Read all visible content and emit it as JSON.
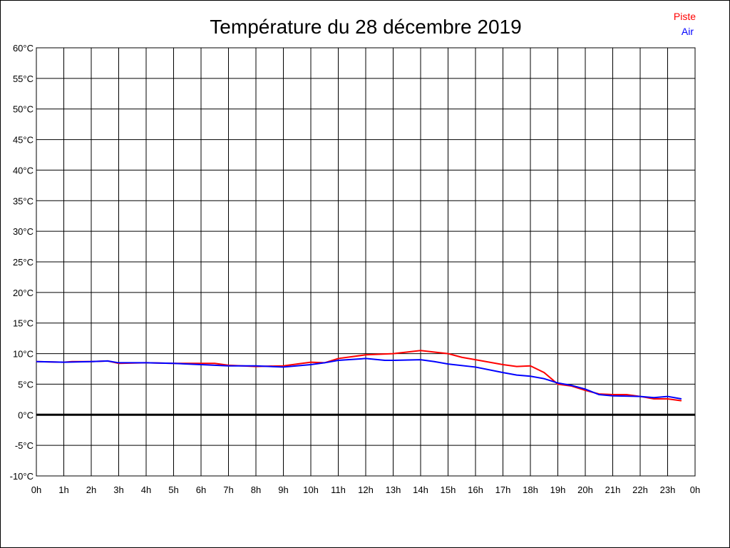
{
  "chart_data": {
    "type": "line",
    "title": "Température du 28 décembre 2019",
    "xlabel": "",
    "ylabel": "",
    "ylim": [
      -10,
      60
    ],
    "xlim": [
      0,
      24
    ],
    "grid": true,
    "legend_placement": "top-right",
    "y_ticks": [
      {
        "v": 60,
        "label": "60°C"
      },
      {
        "v": 55,
        "label": "55°C"
      },
      {
        "v": 50,
        "label": "50°C"
      },
      {
        "v": 45,
        "label": "45°C"
      },
      {
        "v": 40,
        "label": "40°C"
      },
      {
        "v": 35,
        "label": "35°C"
      },
      {
        "v": 30,
        "label": "30°C"
      },
      {
        "v": 25,
        "label": "25°C"
      },
      {
        "v": 20,
        "label": "20°C"
      },
      {
        "v": 15,
        "label": "15°C"
      },
      {
        "v": 10,
        "label": "10°C"
      },
      {
        "v": 5,
        "label": "5°C"
      },
      {
        "v": 0,
        "label": "0°C"
      },
      {
        "v": -5,
        "label": "-5°C"
      },
      {
        "v": -10,
        "label": "-10°C"
      }
    ],
    "x_ticks": [
      {
        "v": 0,
        "label": "0h"
      },
      {
        "v": 1,
        "label": "1h"
      },
      {
        "v": 2,
        "label": "2h"
      },
      {
        "v": 3,
        "label": "3h"
      },
      {
        "v": 4,
        "label": "4h"
      },
      {
        "v": 5,
        "label": "5h"
      },
      {
        "v": 6,
        "label": "6h"
      },
      {
        "v": 7,
        "label": "7h"
      },
      {
        "v": 8,
        "label": "8h"
      },
      {
        "v": 9,
        "label": "9h"
      },
      {
        "v": 10,
        "label": "10h"
      },
      {
        "v": 11,
        "label": "11h"
      },
      {
        "v": 12,
        "label": "12h"
      },
      {
        "v": 13,
        "label": "13h"
      },
      {
        "v": 14,
        "label": "14h"
      },
      {
        "v": 15,
        "label": "15h"
      },
      {
        "v": 16,
        "label": "16h"
      },
      {
        "v": 17,
        "label": "17h"
      },
      {
        "v": 18,
        "label": "18h"
      },
      {
        "v": 19,
        "label": "19h"
      },
      {
        "v": 20,
        "label": "20h"
      },
      {
        "v": 21,
        "label": "21h"
      },
      {
        "v": 22,
        "label": "22h"
      },
      {
        "v": 23,
        "label": "23h"
      },
      {
        "v": 24,
        "label": "0h"
      }
    ],
    "series": [
      {
        "name": "Piste",
        "color": "#ff0000",
        "x": [
          0,
          1,
          1.3,
          2,
          2.6,
          3,
          4,
          5,
          6,
          6.5,
          7,
          8,
          9,
          10,
          10.5,
          11,
          12,
          13,
          14,
          15,
          15.5,
          16,
          17,
          17.5,
          18,
          18.5,
          19,
          19.5,
          20,
          20.5,
          21,
          21.5,
          22,
          22.5,
          23,
          23.5
        ],
        "y": [
          8.7,
          8.6,
          8.7,
          8.7,
          8.8,
          8.4,
          8.5,
          8.4,
          8.4,
          8.4,
          8.1,
          7.9,
          8.0,
          8.6,
          8.5,
          9.2,
          9.8,
          10.0,
          10.5,
          10.0,
          9.4,
          9.0,
          8.2,
          7.9,
          8.0,
          6.9,
          5.0,
          4.7,
          4.0,
          3.4,
          3.3,
          3.3,
          3.0,
          2.6,
          2.6,
          2.3
        ]
      },
      {
        "name": "Air",
        "color": "#0000ff",
        "x": [
          0,
          1,
          2,
          2.6,
          3,
          4,
          5,
          6,
          7,
          8,
          9,
          10,
          10.5,
          11,
          12,
          12.7,
          13,
          14,
          14.5,
          15,
          16,
          17,
          17.5,
          18,
          18.5,
          19,
          19.5,
          20,
          20.5,
          21,
          22,
          22.5,
          23,
          23.5
        ],
        "y": [
          8.7,
          8.6,
          8.7,
          8.8,
          8.5,
          8.5,
          8.4,
          8.2,
          8.0,
          8.0,
          7.8,
          8.2,
          8.5,
          8.9,
          9.2,
          8.9,
          8.9,
          9.0,
          8.7,
          8.3,
          7.8,
          6.9,
          6.5,
          6.3,
          5.9,
          5.2,
          4.8,
          4.2,
          3.3,
          3.1,
          3.0,
          2.8,
          3.0,
          2.6
        ]
      }
    ]
  }
}
